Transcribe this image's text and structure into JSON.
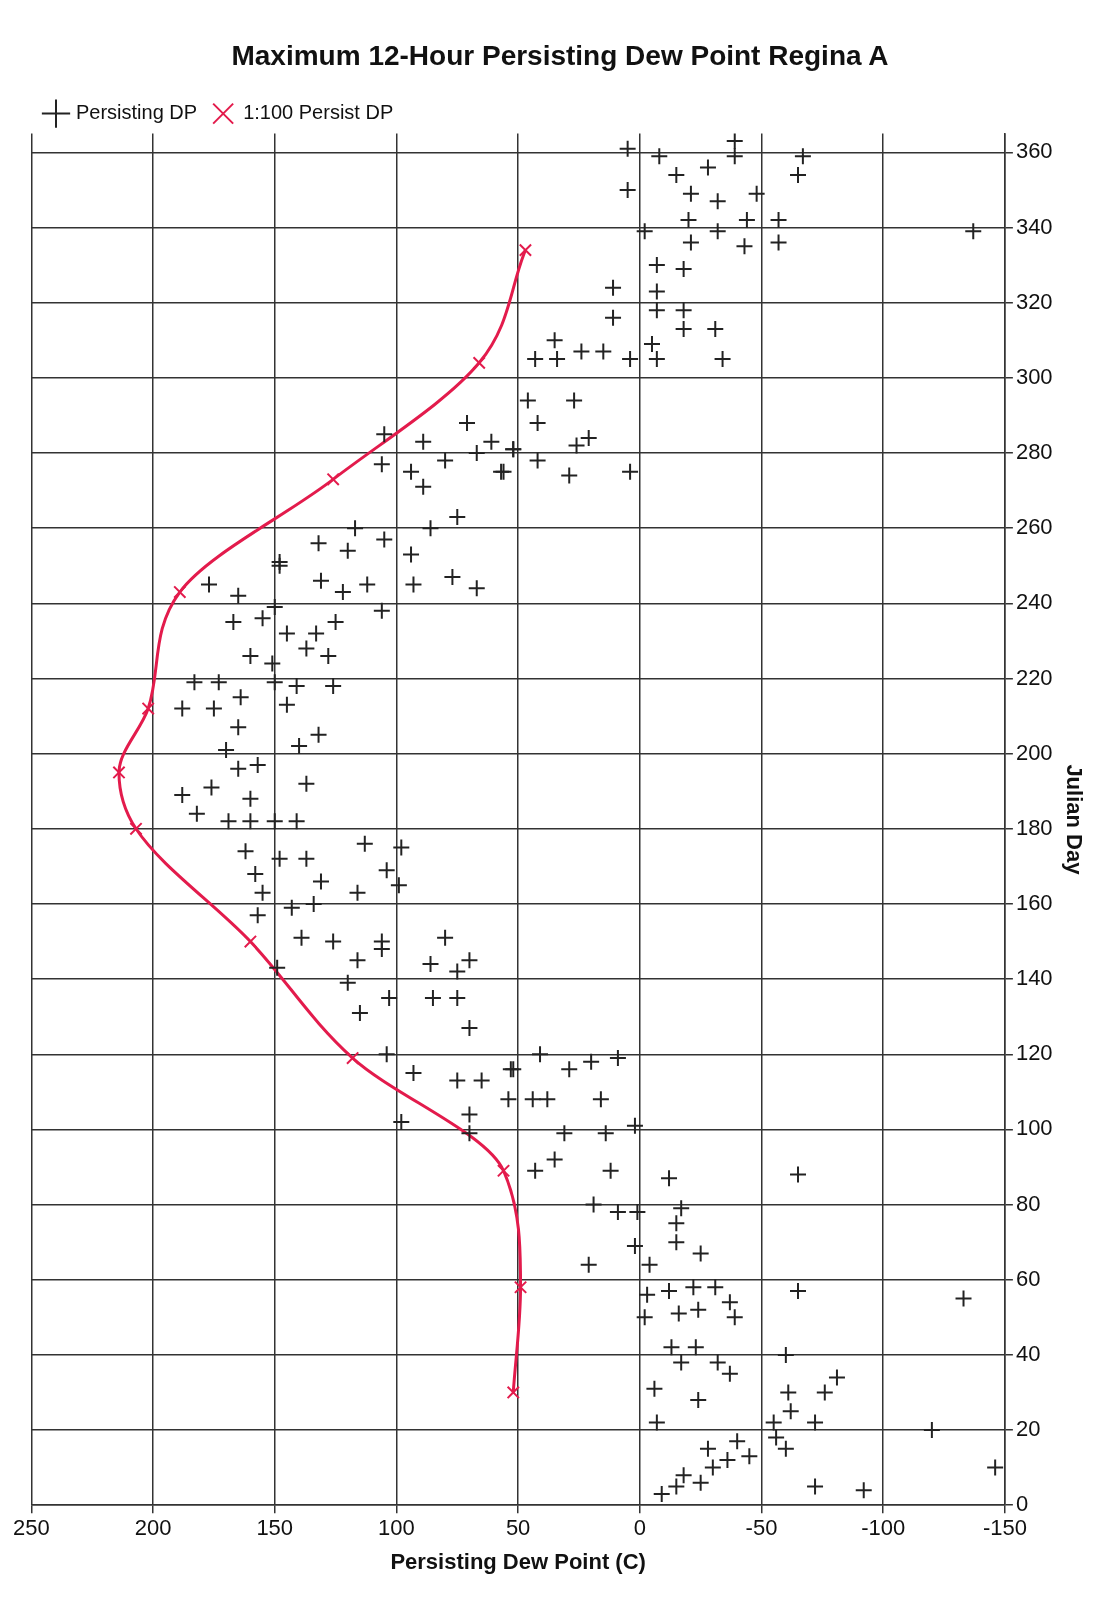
{
  "chart_data": {
    "type": "scatter",
    "title": "Maximum 12-Hour Persisting Dew Point Regina A",
    "xlabel": "Persisting Dew Point (C)",
    "ylabel": "Julian Day",
    "xlim": [
      250,
      -150
    ],
    "xticks": [
      250,
      200,
      150,
      100,
      50,
      0,
      -50,
      -100,
      -150
    ],
    "ylim": [
      0,
      365
    ],
    "yticks": [
      0,
      20,
      40,
      60,
      80,
      100,
      120,
      140,
      160,
      180,
      200,
      220,
      240,
      260,
      280,
      300,
      320,
      340,
      360
    ],
    "grid": true,
    "legend": "top left",
    "series": [
      {
        "name": "Persisting DP",
        "marker": "cross",
        "color": "#222222",
        "values": [
          3,
          4,
          5,
          5,
          6,
          8,
          10,
          10,
          12,
          13,
          15,
          15,
          17,
          18,
          20,
          22,
          22,
          22,
          25,
          28,
          30,
          30,
          31,
          34,
          35,
          38,
          38,
          42,
          42,
          40,
          50,
          51,
          52,
          50,
          54,
          55,
          56,
          57,
          58,
          58,
          57,
          64,
          64,
          67,
          69,
          70,
          75,
          78,
          78,
          79,
          80,
          87,
          89,
          89,
          88,
          92,
          99,
          99,
          101,
          108,
          108,
          108,
          116,
          116,
          118,
          119,
          120,
          139,
          135,
          135,
          135,
          131,
          127,
          120,
          115,
          113,
          113,
          116,
          108,
          104,
          102,
          99,
          250,
          245,
          242,
          246,
          243,
          245,
          245,
          247,
          244,
          238,
          239,
          235,
          236,
          232,
          232,
          235,
          226,
          224,
          226,
          228,
          219,
          219,
          219,
          218,
          218,
          212,
          212,
          215,
          213,
          207,
          205,
          202,
          201,
          197,
          196,
          192,
          191,
          188,
          189,
          184,
          182,
          182,
          182,
          182,
          176,
          175,
          174,
          172,
          172,
          169,
          168,
          166,
          163,
          163,
          165,
          160,
          159,
          157,
          151,
          150,
          150,
          151,
          145,
          148,
          144,
          145,
          143,
          142,
          288,
          285,
          283,
          283,
          277,
          275,
          278,
          280,
          275,
          271,
          281,
          260,
          260,
          263,
          257,
          253,
          256,
          254,
          251,
          361,
          359,
          363,
          359,
          354,
          356,
          359,
          354,
          350,
          349,
          347,
          349,
          342,
          342,
          342,
          339,
          339,
          339,
          336,
          335,
          336,
          330,
          329,
          324,
          323,
          318,
          318,
          316,
          313,
          313,
          310,
          309,
          305,
          305,
          307,
          307,
          305,
          305,
          305,
          294,
          294,
          288,
          284,
          282,
          278,
          281,
          275,
          274,
          275
        ],
        "x": [
          -9,
          -92,
          -15,
          -72,
          -25,
          -18,
          -30,
          -146,
          -36,
          -45,
          -28,
          -60,
          -40,
          -56,
          -120,
          -7,
          -55,
          -72,
          -62,
          -24,
          -61,
          -76,
          -6,
          -81,
          -37,
          -17,
          -32,
          -13,
          -23,
          -60,
          -2,
          -16,
          -24,
          -39,
          -37,
          -133,
          -3,
          -12,
          -22,
          -31,
          -65,
          21,
          -4,
          -25,
          2,
          -15,
          -15,
          1,
          9,
          -17,
          19,
          -12,
          43,
          12,
          -65,
          35,
          31,
          14,
          2,
          44,
          38,
          16,
          52,
          29,
          20,
          9,
          41,
          120,
          103,
          85,
          75,
          115,
          70,
          104,
          93,
          75,
          65,
          53,
          54,
          70,
          98,
          70,
          148,
          177,
          165,
          131,
          122,
          112,
          93,
          77,
          67,
          106,
          150,
          167,
          155,
          145,
          133,
          125,
          160,
          151,
          128,
          137,
          183,
          173,
          150,
          141,
          126,
          188,
          175,
          164,
          145,
          165,
          132,
          140,
          170,
          157,
          165,
          137,
          176,
          160,
          188,
          182,
          169,
          160,
          150,
          141,
          113,
          98,
          162,
          148,
          137,
          104,
          158,
          131,
          155,
          116,
          99,
          134,
          143,
          157,
          139,
          126,
          106,
          80,
          116,
          106,
          86,
          70,
          149,
          75,
          71,
          105,
          89,
          61,
          106,
          94,
          80,
          67,
          57,
          89,
          52,
          117,
          86,
          75,
          105,
          94,
          132,
          120,
          148,
          5,
          -8,
          -39,
          -39,
          -15,
          -28,
          -67,
          -65,
          5,
          -21,
          -32,
          -48,
          -20,
          -44,
          -57,
          -2,
          -32,
          -137,
          -21,
          -43,
          -57,
          -7,
          -18,
          11,
          -7,
          -7,
          -18,
          11,
          -18,
          -31,
          35,
          -5,
          43,
          34,
          24,
          15,
          4,
          -7,
          -34,
          46,
          27,
          42,
          21,
          26,
          42,
          52,
          56,
          29,
          4
        ]
      },
      {
        "name": "1:100 Persist DP",
        "type": "line",
        "marker": "cross",
        "line_style": "solid",
        "color": "#e31b4c",
        "values": [
          30,
          58,
          89,
          119,
          150,
          180,
          195,
          212,
          243,
          273,
          304,
          334
        ],
        "x": [
          52,
          49,
          56,
          118,
          160,
          207,
          214,
          202,
          189,
          126,
          66,
          47
        ]
      }
    ]
  }
}
